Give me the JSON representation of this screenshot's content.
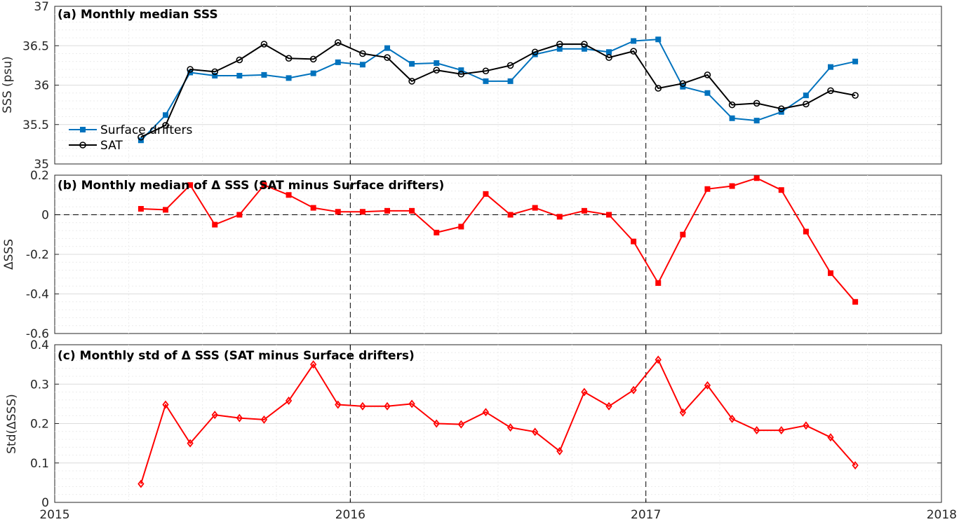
{
  "colors": {
    "drifters": "#0072BD",
    "sat": "#000000",
    "delta": "#FF0000",
    "axis": "#262626"
  },
  "x_axis": {
    "ticks": [
      2015,
      2016,
      2017,
      2018
    ],
    "tick_labels": [
      "2015",
      "2016",
      "2017",
      "2018"
    ],
    "xlim": [
      2015,
      2018
    ]
  },
  "chart_data": [
    {
      "type": "line",
      "title": "(a) Monthly median SSS",
      "ylabel": "SSS (psu)",
      "ylim": [
        35,
        37
      ],
      "yticks": [
        35,
        35.5,
        36,
        36.5,
        37
      ],
      "ytick_labels": [
        "35",
        "35.5",
        "36",
        "36.5",
        "37"
      ],
      "x": [
        2015.2917,
        2015.375,
        2015.4583,
        2015.5417,
        2015.625,
        2015.7083,
        2015.7917,
        2015.875,
        2015.9583,
        2016.0417,
        2016.125,
        2016.2083,
        2016.2917,
        2016.375,
        2016.4583,
        2016.5417,
        2016.625,
        2016.7083,
        2016.7917,
        2016.875,
        2016.9583,
        2017.0417,
        2017.125,
        2017.2083,
        2017.2917,
        2017.375,
        2017.4583,
        2017.5417,
        2017.625,
        2017.7083
      ],
      "series": [
        {
          "name": "Surface drifters",
          "marker": "square",
          "values": [
            35.3,
            35.62,
            36.16,
            36.12,
            36.12,
            36.13,
            36.09,
            36.15,
            36.29,
            36.26,
            36.47,
            36.27,
            36.28,
            36.19,
            36.05,
            36.05,
            36.39,
            36.46,
            36.46,
            36.42,
            36.56,
            36.58,
            35.98,
            35.9,
            35.58,
            35.55,
            35.66,
            35.87,
            36.23,
            36.3
          ]
        },
        {
          "name": "SAT",
          "marker": "circle",
          "values": [
            35.34,
            35.49,
            36.2,
            36.17,
            36.32,
            36.52,
            36.34,
            36.33,
            36.54,
            36.4,
            36.35,
            36.05,
            36.19,
            36.14,
            36.18,
            36.25,
            36.42,
            36.52,
            36.52,
            36.35,
            36.43,
            35.96,
            36.02,
            36.13,
            35.75,
            35.77,
            35.7,
            35.76,
            35.93,
            35.87
          ]
        }
      ],
      "legend": "lower-left"
    },
    {
      "type": "line",
      "title": "(b) Monthly median of Δ SSS (SAT minus Surface drifters)",
      "ylabel": "ΔSSS",
      "ylim": [
        -0.6,
        0.2
      ],
      "yticks": [
        -0.6,
        -0.4,
        -0.2,
        0,
        0.2
      ],
      "ytick_labels": [
        "-0.6",
        "-0.4",
        "-0.2",
        "0",
        "0.2"
      ],
      "x": [
        2015.2917,
        2015.375,
        2015.4583,
        2015.5417,
        2015.625,
        2015.7083,
        2015.7917,
        2015.875,
        2015.9583,
        2016.0417,
        2016.125,
        2016.2083,
        2016.2917,
        2016.375,
        2016.4583,
        2016.5417,
        2016.625,
        2016.7083,
        2016.7917,
        2016.875,
        2016.9583,
        2017.0417,
        2017.125,
        2017.2083,
        2017.2917,
        2017.375,
        2017.4583,
        2017.5417,
        2017.625,
        2017.7083
      ],
      "series": [
        {
          "marker": "square",
          "values": [
            0.03,
            0.025,
            0.15,
            -0.05,
            0.0,
            0.15,
            0.1,
            0.035,
            0.015,
            0.015,
            0.02,
            0.02,
            -0.09,
            -0.06,
            0.105,
            0.0,
            0.035,
            -0.01,
            0.02,
            0.0,
            -0.135,
            -0.345,
            -0.1,
            0.13,
            0.145,
            0.185,
            0.125,
            -0.085,
            -0.295,
            -0.44
          ]
        }
      ]
    },
    {
      "type": "line",
      "title": "(c) Monthly std of Δ SSS (SAT minus Surface drifters)",
      "ylabel": "Std(ΔSSS)",
      "ylim": [
        0,
        0.4
      ],
      "yticks": [
        0,
        0.1,
        0.2,
        0.3,
        0.4
      ],
      "ytick_labels": [
        "0",
        "0.1",
        "0.2",
        "0.3",
        "0.4"
      ],
      "x": [
        2015.2917,
        2015.375,
        2015.4583,
        2015.5417,
        2015.625,
        2015.7083,
        2015.7917,
        2015.875,
        2015.9583,
        2016.0417,
        2016.125,
        2016.2083,
        2016.2917,
        2016.375,
        2016.4583,
        2016.5417,
        2016.625,
        2016.7083,
        2016.7917,
        2016.875,
        2016.9583,
        2017.0417,
        2017.125,
        2017.2083,
        2017.2917,
        2017.375,
        2017.4583,
        2017.5417,
        2017.625,
        2017.7083
      ],
      "series": [
        {
          "marker": "diamond",
          "values": [
            0.047,
            0.248,
            0.15,
            0.222,
            0.214,
            0.21,
            0.258,
            0.35,
            0.248,
            0.244,
            0.244,
            0.25,
            0.2,
            0.198,
            0.229,
            0.19,
            0.179,
            0.13,
            0.28,
            0.244,
            0.285,
            0.362,
            0.228,
            0.297,
            0.212,
            0.183,
            0.183,
            0.195,
            0.165,
            0.094
          ]
        }
      ]
    }
  ]
}
